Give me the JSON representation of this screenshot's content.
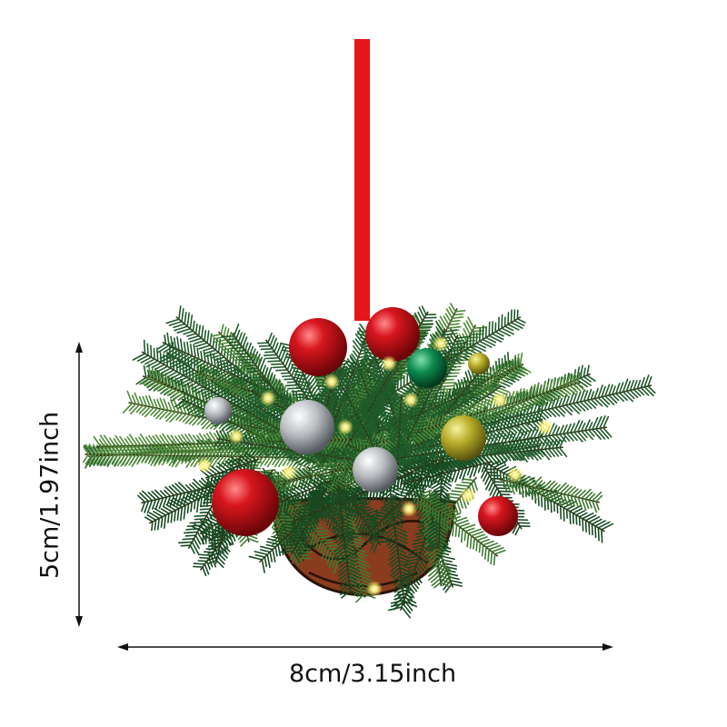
{
  "product": {
    "subject": "hanging Christmas basket ornament",
    "ribbon_color": "#e8141c",
    "greenery_color": "#1f5a2a",
    "basket_color": "#8a3c1e"
  },
  "dimensions": {
    "width_label": "8cm/3.15inch",
    "height_label": "5cm/1.97inch"
  }
}
